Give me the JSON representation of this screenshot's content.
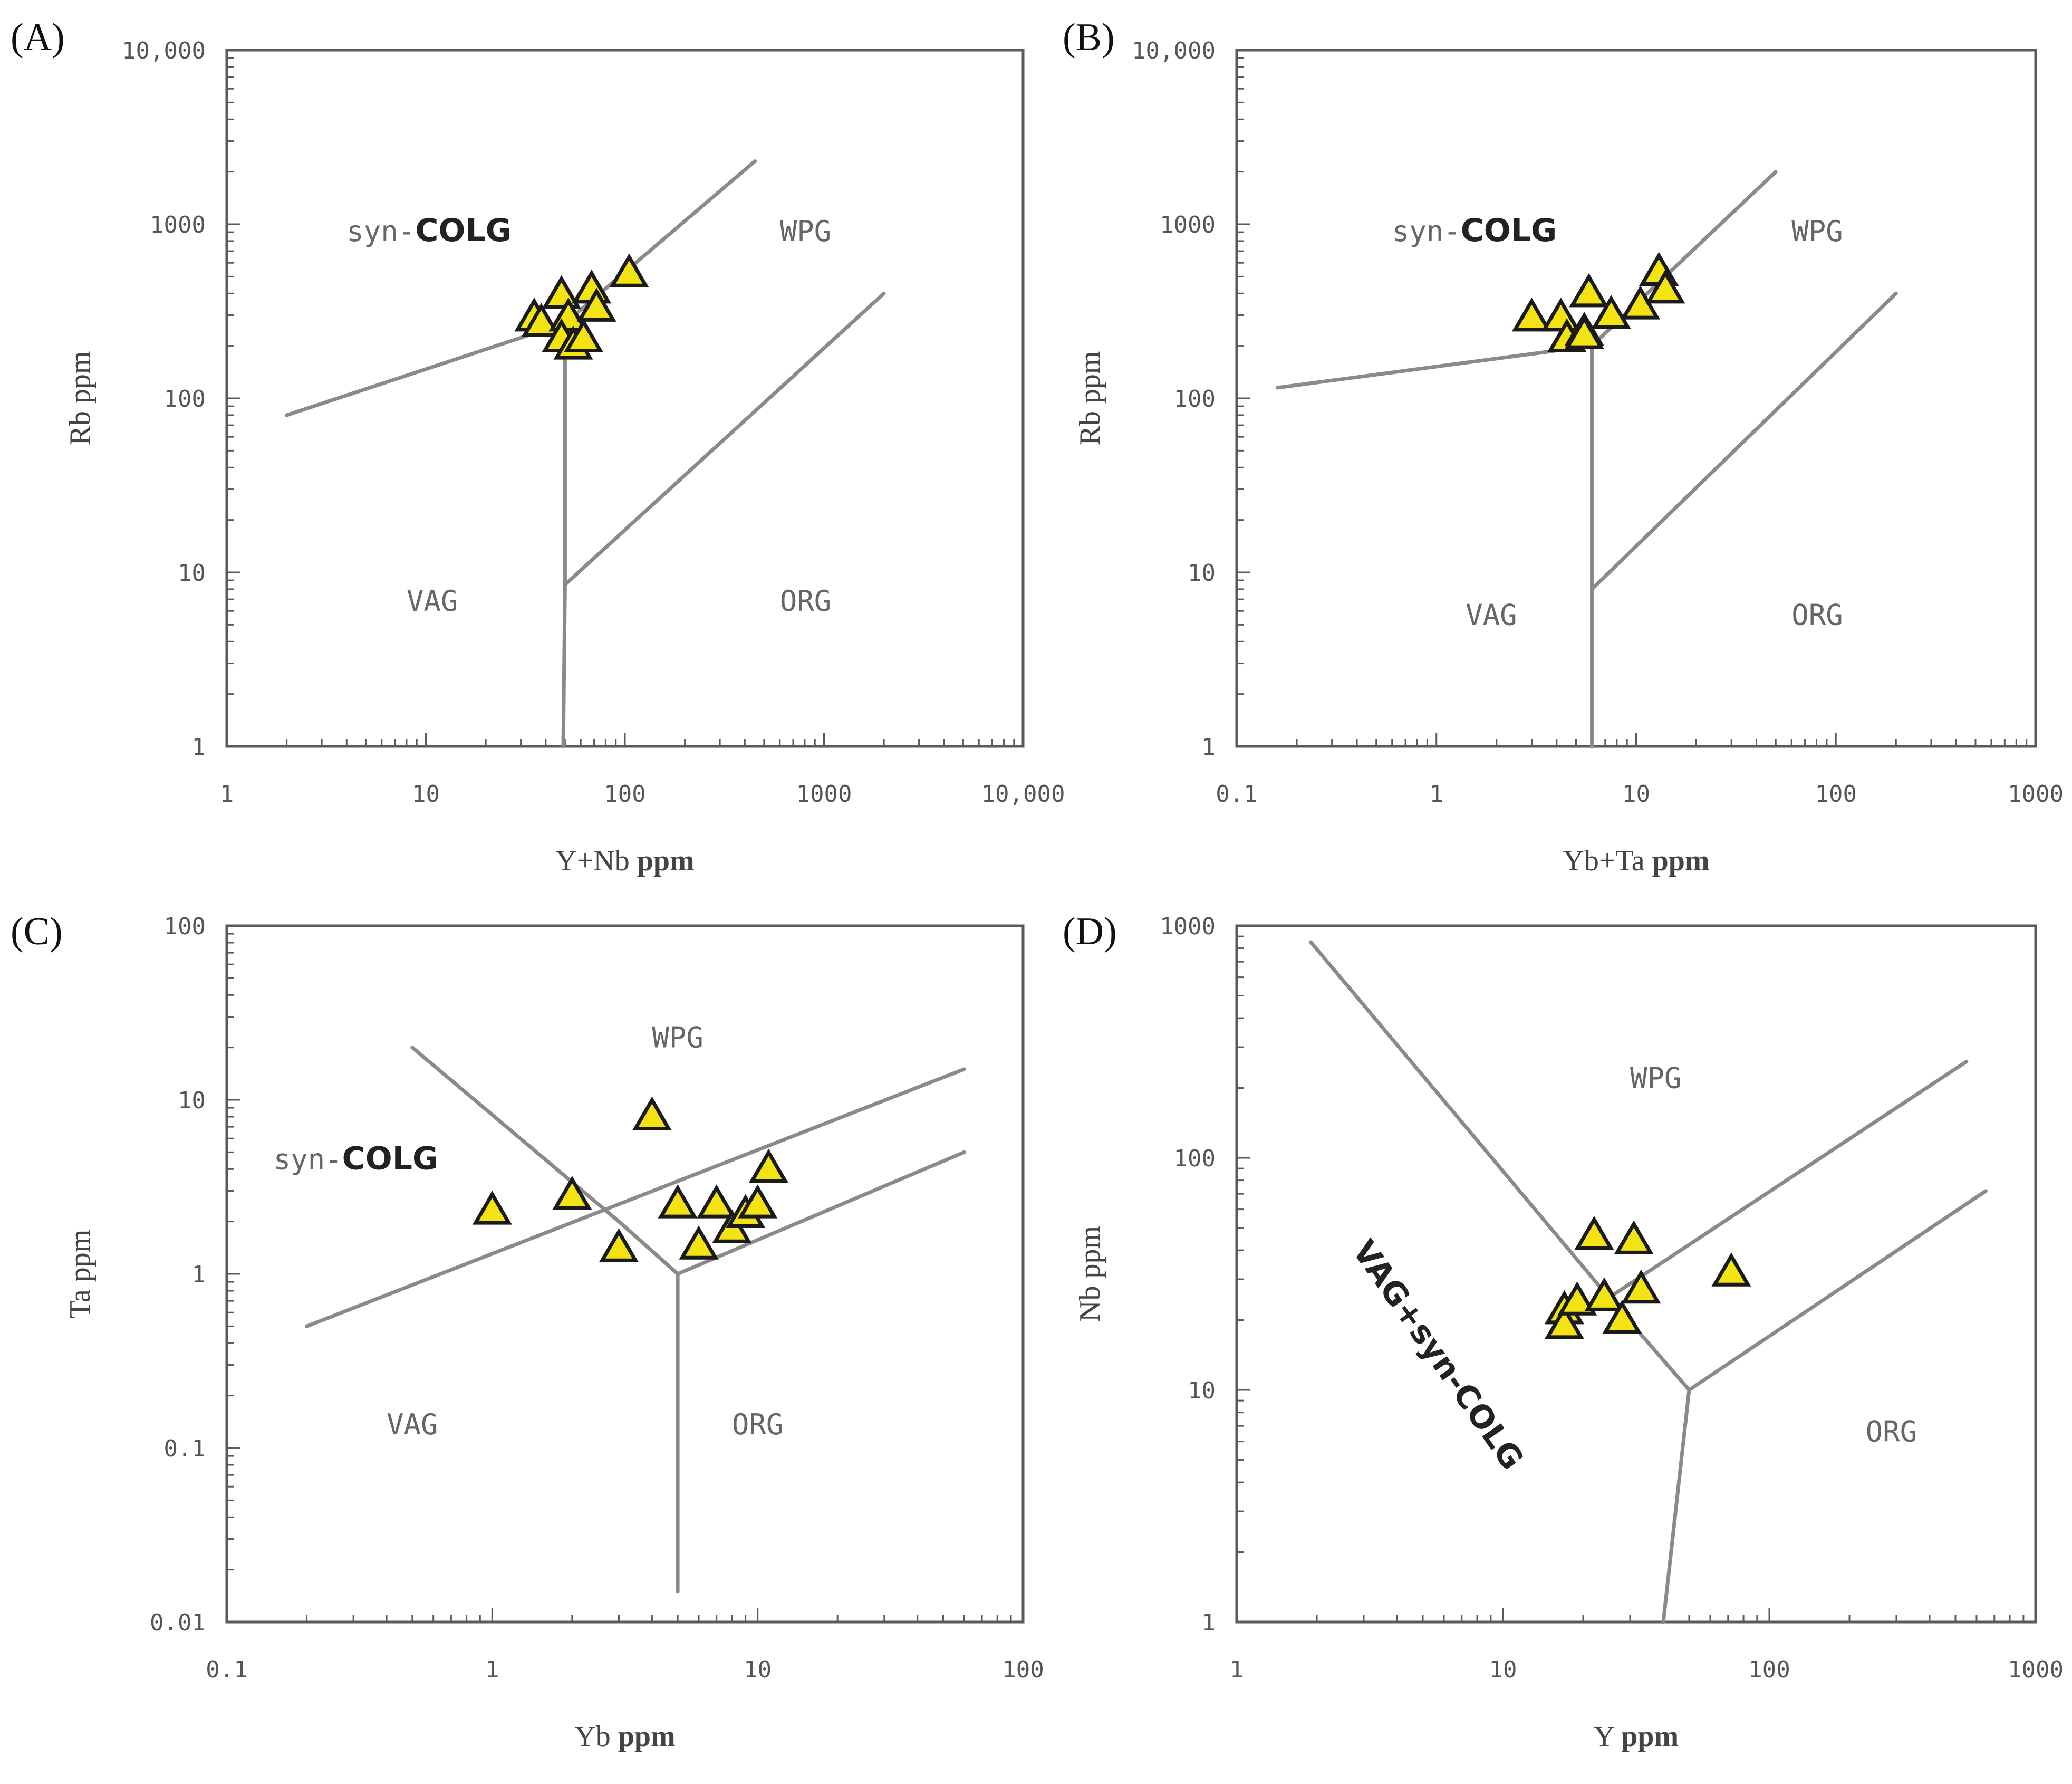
{
  "colors": {
    "marker_fill": "#f3e312",
    "marker_stroke": "#1a1a1a",
    "boundary": "#8a8a8a",
    "frame": "#5a5a5a"
  },
  "chart_data": [
    {
      "type": "scatter",
      "panel": "(A)",
      "xlabel": {
        "main": "Y+Nb",
        "unit": "ppm"
      },
      "ylabel": "Rb ppm",
      "xscale": "log",
      "yscale": "log",
      "xlim": [
        1,
        10000
      ],
      "ylim": [
        1,
        10000
      ],
      "xticks": [
        {
          "v": 1,
          "l": "1"
        },
        {
          "v": 10,
          "l": "10"
        },
        {
          "v": 100,
          "l": "100"
        },
        {
          "v": 1000,
          "l": "1000"
        },
        {
          "v": 10000,
          "l": "10,000"
        }
      ],
      "yticks": [
        {
          "v": 1,
          "l": "1"
        },
        {
          "v": 10,
          "l": "10"
        },
        {
          "v": 100,
          "l": "100"
        },
        {
          "v": 1000,
          "l": "1000"
        },
        {
          "v": 10000,
          "l": "10,000"
        }
      ],
      "fields": [
        {
          "text": "syn-",
          "bold": "COLG",
          "x": 4,
          "y": 800
        },
        {
          "text": "WPG",
          "x": 600,
          "y": 800
        },
        {
          "text": "VAG",
          "x": 8,
          "y": 6
        },
        {
          "text": "ORG",
          "x": 600,
          "y": 6
        }
      ],
      "boundaries": [
        [
          [
            2,
            80
          ],
          [
            50,
            270
          ],
          [
            450,
            2300
          ]
        ],
        [
          [
            50,
            270
          ],
          [
            50,
            8.5
          ],
          [
            2000,
            400
          ]
        ],
        [
          [
            50,
            8.5
          ],
          [
            49,
            1
          ]
        ]
      ],
      "points": [
        [
          35,
          290
        ],
        [
          38,
          270
        ],
        [
          48,
          390
        ],
        [
          52,
          290
        ],
        [
          48,
          220
        ],
        [
          55,
          200
        ],
        [
          62,
          220
        ],
        [
          68,
          420
        ],
        [
          72,
          330
        ],
        [
          105,
          520
        ]
      ]
    },
    {
      "type": "scatter",
      "panel": "(B)",
      "xlabel": {
        "main": "Yb+Ta",
        "unit": "ppm"
      },
      "ylabel": "Rb ppm",
      "xscale": "log",
      "yscale": "log",
      "xlim": [
        0.1,
        1000
      ],
      "ylim": [
        1,
        10000
      ],
      "xticks": [
        {
          "v": 0.1,
          "l": "0.1"
        },
        {
          "v": 1,
          "l": "1"
        },
        {
          "v": 10,
          "l": "10"
        },
        {
          "v": 100,
          "l": "100"
        },
        {
          "v": 1000,
          "l": "1000"
        }
      ],
      "yticks": [
        {
          "v": 1,
          "l": "1"
        },
        {
          "v": 10,
          "l": "10"
        },
        {
          "v": 100,
          "l": "100"
        },
        {
          "v": 1000,
          "l": "1000"
        },
        {
          "v": 10000,
          "l": "10,000"
        }
      ],
      "fields": [
        {
          "text": "syn-",
          "bold": "COLG",
          "x": 0.6,
          "y": 800
        },
        {
          "text": "WPG",
          "x": 60,
          "y": 800
        },
        {
          "text": "VAG",
          "x": 1.4,
          "y": 5
        },
        {
          "text": "ORG",
          "x": 60,
          "y": 5
        }
      ],
      "boundaries": [
        [
          [
            0.16,
            115
          ],
          [
            6,
            200
          ],
          [
            50,
            2000
          ]
        ],
        [
          [
            6,
            200
          ],
          [
            6,
            8
          ],
          [
            200,
            400
          ]
        ],
        [
          [
            6,
            8
          ],
          [
            6,
            1
          ]
        ]
      ],
      "points": [
        [
          3,
          290
        ],
        [
          4.2,
          290
        ],
        [
          5.8,
          400
        ],
        [
          4.5,
          220
        ],
        [
          5.5,
          240
        ],
        [
          7.5,
          300
        ],
        [
          10.5,
          340
        ],
        [
          13,
          530
        ],
        [
          14,
          420
        ],
        [
          5.5,
          230
        ]
      ]
    },
    {
      "type": "scatter",
      "panel": "(C)",
      "xlabel": {
        "main": "Yb",
        "unit": "ppm"
      },
      "ylabel": "Ta ppm",
      "xscale": "log",
      "yscale": "log",
      "xlim": [
        0.1,
        100
      ],
      "ylim": [
        0.01,
        100
      ],
      "xticks": [
        {
          "v": 0.1,
          "l": "0.1"
        },
        {
          "v": 1,
          "l": "1"
        },
        {
          "v": 10,
          "l": "10"
        },
        {
          "v": 100,
          "l": "100"
        }
      ],
      "yticks": [
        {
          "v": 0.01,
          "l": "0.01"
        },
        {
          "v": 0.1,
          "l": "0.1"
        },
        {
          "v": 1,
          "l": "1"
        },
        {
          "v": 10,
          "l": "10"
        },
        {
          "v": 100,
          "l": "100"
        }
      ],
      "fields": [
        {
          "text": "syn-",
          "bold": "COLG",
          "x": 0.15,
          "y": 4
        },
        {
          "text": "WPG",
          "x": 4,
          "y": 20
        },
        {
          "text": "VAG",
          "x": 0.4,
          "y": 0.12
        },
        {
          "text": "ORG",
          "x": 8,
          "y": 0.12
        }
      ],
      "boundaries": [
        [
          [
            0.5,
            20
          ],
          [
            3,
            2
          ],
          [
            5,
            1
          ]
        ],
        [
          [
            0.2,
            0.5
          ],
          [
            60,
            15
          ]
        ],
        [
          [
            5,
            1
          ],
          [
            60,
            5
          ]
        ],
        [
          [
            5,
            1
          ],
          [
            5,
            0.015
          ]
        ]
      ],
      "points": [
        [
          1,
          2.3
        ],
        [
          2,
          2.8
        ],
        [
          3,
          1.4
        ],
        [
          4,
          8
        ],
        [
          5,
          2.5
        ],
        [
          6,
          1.45
        ],
        [
          7,
          2.5
        ],
        [
          8,
          1.8
        ],
        [
          9,
          2.2
        ],
        [
          10,
          2.5
        ],
        [
          11,
          4
        ]
      ]
    },
    {
      "type": "scatter",
      "panel": "(D)",
      "xlabel": {
        "main": "Y",
        "unit": "ppm"
      },
      "ylabel": "Nb ppm",
      "xscale": "log",
      "yscale": "log",
      "xlim": [
        1,
        1000
      ],
      "ylim": [
        1,
        1000
      ],
      "xticks": [
        {
          "v": 1,
          "l": "1"
        },
        {
          "v": 10,
          "l": "10"
        },
        {
          "v": 100,
          "l": "100"
        },
        {
          "v": 1000,
          "l": "1000"
        }
      ],
      "yticks": [
        {
          "v": 1,
          "l": "1"
        },
        {
          "v": 10,
          "l": "10"
        },
        {
          "v": 100,
          "l": "100"
        },
        {
          "v": 1000,
          "l": "1000"
        }
      ],
      "fields": [
        {
          "text": "WPG",
          "x": 30,
          "y": 200
        },
        {
          "text": "ORG",
          "x": 230,
          "y": 6
        }
      ],
      "rotated_field": {
        "text": "VAG+syn-",
        "bold": "COLG",
        "x": 2.7,
        "y": 40,
        "angle": 55
      },
      "boundaries": [
        [
          [
            1.9,
            850
          ],
          [
            25,
            25
          ],
          [
            50,
            10
          ]
        ],
        [
          [
            25,
            25
          ],
          [
            550,
            260
          ]
        ],
        [
          [
            50,
            10
          ],
          [
            650,
            72
          ]
        ],
        [
          [
            50,
            10
          ],
          [
            40,
            1
          ]
        ]
      ],
      "points": [
        [
          17,
          22
        ],
        [
          17,
          19
        ],
        [
          19,
          24
        ],
        [
          22,
          46
        ],
        [
          24,
          25
        ],
        [
          28,
          20
        ],
        [
          31,
          44
        ],
        [
          33,
          27
        ],
        [
          72,
          32
        ]
      ]
    }
  ]
}
